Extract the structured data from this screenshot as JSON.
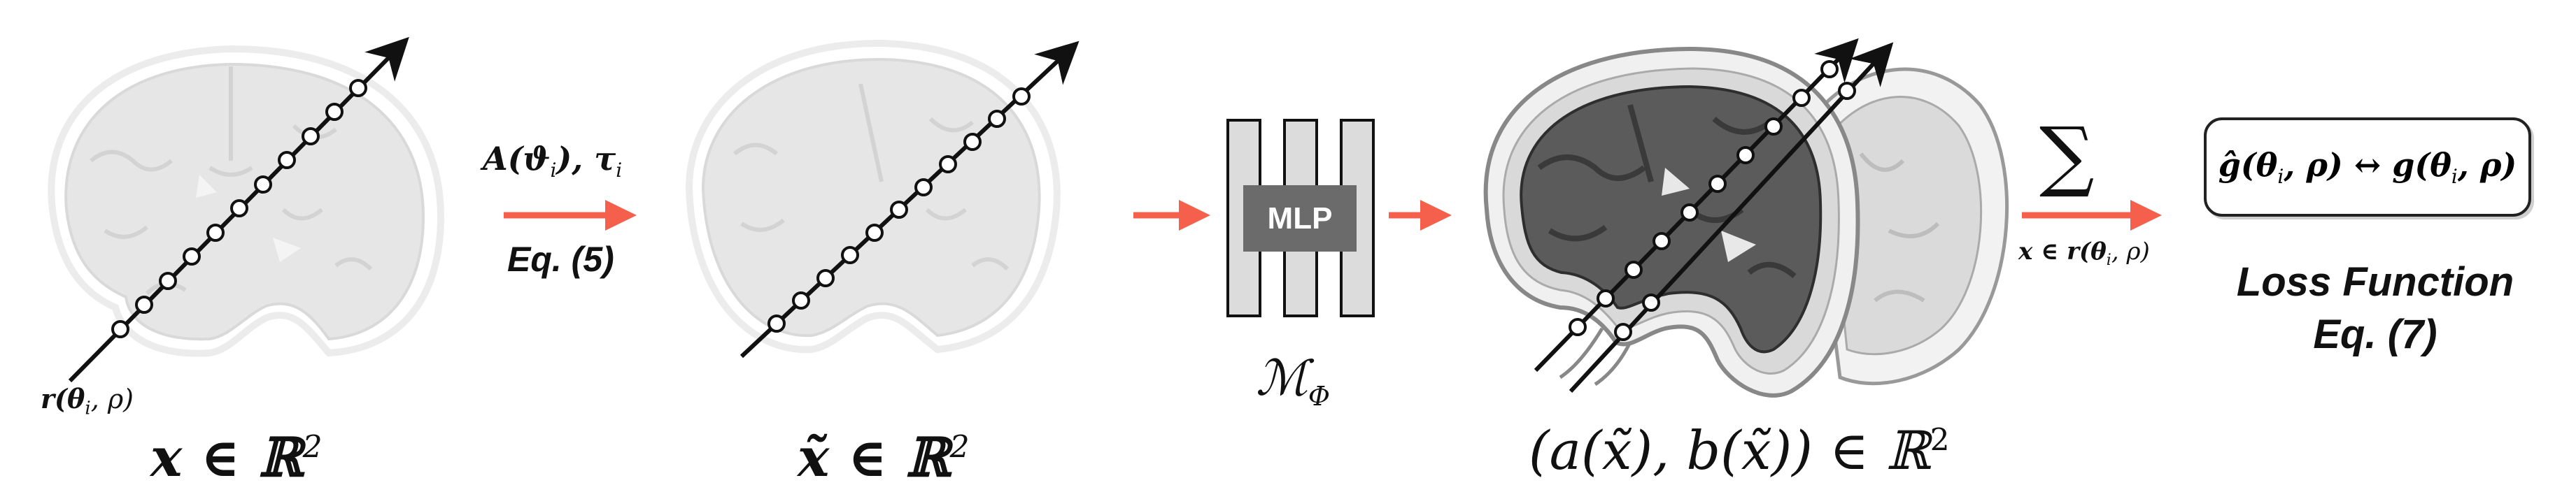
{
  "diagram": {
    "ray_label": "r(θ",
    "ray_label_sub": "i",
    "ray_label_rest": ", ρ)",
    "x_label": "x ∈ ℝ",
    "x_label_sup": "2",
    "xt_label": "x̃ ∈ ℝ",
    "xt_label_sup": "2",
    "ab_label": "(a(x̃), b(x̃)) ∈ ℝ",
    "ab_label_sup": "2",
    "transform_label": "A(ϑ",
    "transform_sub": "i",
    "transform_rest": "),  τ",
    "transform_sub2": "i",
    "eq5_label": "Eq. (5)",
    "mlp_label": "MLP",
    "model_label": "ℳ",
    "model_sub": "Φ",
    "sum_symbol": "∑",
    "sum_sub": "x ∈ r(θ",
    "sum_sub_i": "i",
    "sum_sub_rest": ", ρ)",
    "loss_text": "ĝ(θ",
    "loss_sub1": "i",
    "loss_mid": ", ρ) ↔ g(θ",
    "loss_sub2": "i",
    "loss_end": ", ρ)",
    "loss_title": "Loss Function",
    "loss_eq": "Eq. (7)",
    "colors": {
      "arrow": "#f4604c",
      "brain_light": "#e4e4e4",
      "brain_dark": "#595959",
      "brain_mid": "#cfcfcf",
      "ray": "#111111"
    }
  }
}
